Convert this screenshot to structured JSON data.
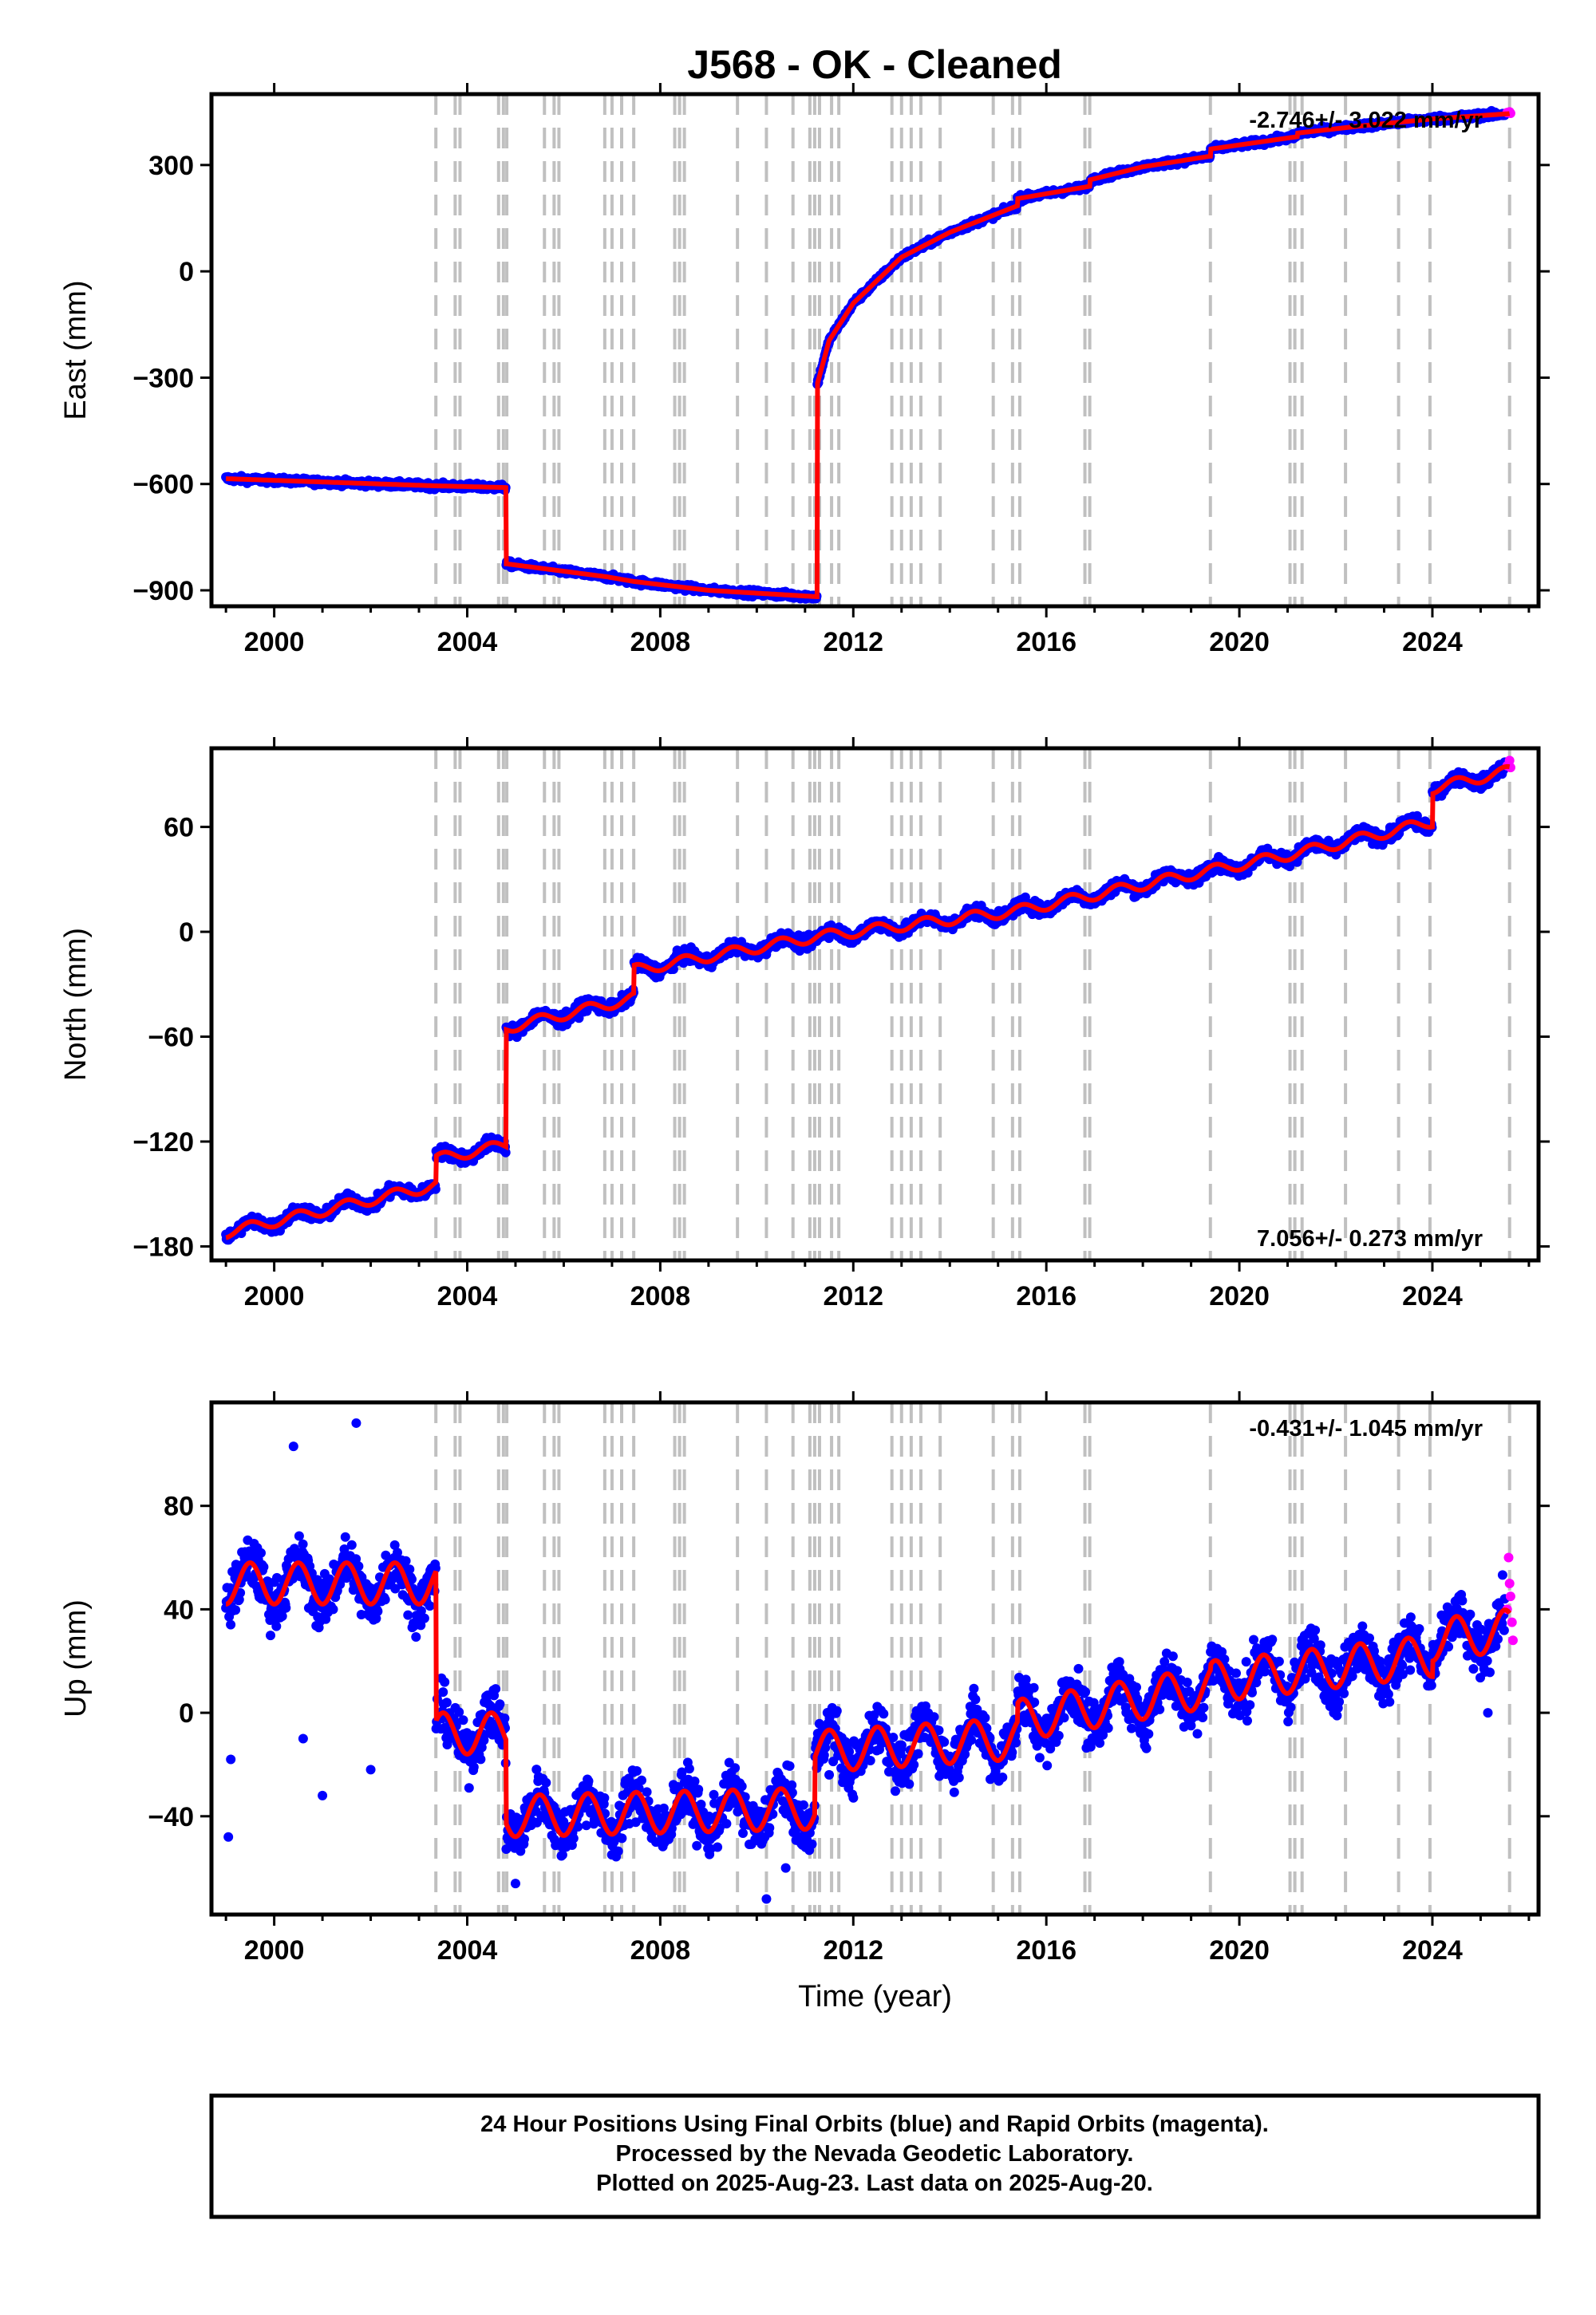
{
  "title": "J568  - OK - Cleaned",
  "chart_data": [
    {
      "type": "scatter",
      "id": "east",
      "ylabel": "East (mm)",
      "xlabel": "",
      "rate_text": "-2.746+/- 3.022 mm/yr",
      "rate_position": "top-right",
      "xlim": [
        1998.7,
        2026.2
      ],
      "ylim": [
        -945,
        500
      ],
      "xticks": [
        2000,
        2004,
        2008,
        2012,
        2016,
        2020,
        2024
      ],
      "yticks": [
        -900,
        -600,
        -300,
        0,
        300
      ],
      "ytick_labels": [
        "−900",
        "−600",
        "−300",
        "0",
        "300"
      ],
      "model": [
        [
          1999.0,
          -585
        ],
        [
          2003.3,
          -605
        ],
        [
          2004.8,
          -610
        ],
        [
          2004.8,
          -825
        ],
        [
          2006.9,
          -862
        ],
        [
          2007.45,
          -875
        ],
        [
          2009.0,
          -900
        ],
        [
          2011.25,
          -918
        ],
        [
          2011.25,
          -320
        ],
        [
          2011.5,
          -195
        ],
        [
          2012.0,
          -90
        ],
        [
          2013.0,
          40
        ],
        [
          2014.0,
          110
        ],
        [
          2015.4,
          185
        ],
        [
          2015.4,
          205
        ],
        [
          2016.9,
          240
        ],
        [
          2016.9,
          258
        ],
        [
          2018.0,
          295
        ],
        [
          2019.4,
          325
        ],
        [
          2019.4,
          345
        ],
        [
          2021.2,
          380
        ],
        [
          2021.2,
          390
        ],
        [
          2022.5,
          410
        ],
        [
          2024.0,
          430
        ],
        [
          2025.6,
          445
        ]
      ],
      "noise_mm": 6,
      "rapid_points": [
        [
          2025.55,
          448
        ],
        [
          2025.6,
          450
        ],
        [
          2025.62,
          446
        ]
      ]
    },
    {
      "type": "scatter",
      "id": "north",
      "ylabel": "North (mm)",
      "xlabel": "",
      "rate_text": "7.056+/- 0.273 mm/yr",
      "rate_position": "bottom-right",
      "xlim": [
        1998.7,
        2026.2
      ],
      "ylim": [
        -188,
        105
      ],
      "xticks": [
        2000,
        2004,
        2008,
        2012,
        2016,
        2020,
        2024
      ],
      "yticks": [
        -180,
        -120,
        -60,
        0,
        60
      ],
      "ytick_labels": [
        "−180",
        "−120",
        "−60",
        "0",
        "60"
      ],
      "model": [
        [
          1999.0,
          -172
        ],
        [
          2003.35,
          -145
        ],
        [
          2003.35,
          -130
        ],
        [
          2004.8,
          -122
        ],
        [
          2004.8,
          -55
        ],
        [
          2007.45,
          -38
        ],
        [
          2007.45,
          -22
        ],
        [
          2011.2,
          -3
        ],
        [
          2015.4,
          12
        ],
        [
          2019.4,
          35
        ],
        [
          2021.2,
          45
        ],
        [
          2024.0,
          63
        ],
        [
          2024.0,
          82
        ],
        [
          2025.6,
          92
        ]
      ],
      "seasonal_mm": 3,
      "noise_mm": 2.5,
      "rapid_points": [
        [
          2025.55,
          95
        ],
        [
          2025.6,
          98
        ],
        [
          2025.62,
          94
        ]
      ]
    },
    {
      "type": "scatter",
      "id": "up",
      "ylabel": "Up (mm)",
      "xlabel": "Time (year)",
      "rate_text": "-0.431+/- 1.045 mm/yr",
      "rate_position": "top-right",
      "xlim": [
        1998.7,
        2026.2
      ],
      "ylim": [
        -78,
        120
      ],
      "xticks": [
        2000,
        2004,
        2008,
        2012,
        2016,
        2020,
        2024
      ],
      "yticks": [
        -40,
        0,
        40,
        80
      ],
      "ytick_labels": [
        "−40",
        "0",
        "40",
        "80"
      ],
      "model": [
        [
          1999.0,
          50
        ],
        [
          2003.35,
          50
        ],
        [
          2003.35,
          -8
        ],
        [
          2004.8,
          -8
        ],
        [
          2004.8,
          -40
        ],
        [
          2011.2,
          -37
        ],
        [
          2011.2,
          -15
        ],
        [
          2015.4,
          -10
        ],
        [
          2015.4,
          -3
        ],
        [
          2019.4,
          10
        ],
        [
          2019.4,
          12
        ],
        [
          2024.0,
          22
        ],
        [
          2024.0,
          28
        ],
        [
          2025.6,
          32
        ]
      ],
      "seasonal_mm": 8,
      "noise_mm": 7,
      "outliers": [
        [
          1999.05,
          -48
        ],
        [
          1999.1,
          -18
        ],
        [
          2000.4,
          103
        ],
        [
          2000.6,
          -10
        ],
        [
          2001.0,
          -32
        ],
        [
          2001.7,
          112
        ],
        [
          2002.0,
          -22
        ],
        [
          2005.0,
          -66
        ],
        [
          2010.2,
          -72
        ],
        [
          2010.6,
          -60
        ],
        [
          2011.5,
          -24
        ],
        [
          2025.15,
          0
        ]
      ],
      "rapid_points": [
        [
          2025.55,
          40
        ],
        [
          2025.58,
          60
        ],
        [
          2025.6,
          50
        ],
        [
          2025.62,
          45
        ],
        [
          2025.65,
          35
        ],
        [
          2025.67,
          28
        ]
      ]
    }
  ],
  "event_lines": [
    2003.35,
    2003.75,
    2003.85,
    2004.65,
    2004.75,
    2004.82,
    2005.6,
    2005.8,
    2005.9,
    2006.85,
    2007.0,
    2007.2,
    2007.45,
    2008.3,
    2008.4,
    2008.5,
    2009.6,
    2010.2,
    2010.75,
    2011.1,
    2011.2,
    2011.3,
    2011.55,
    2011.7,
    2012.8,
    2013.0,
    2013.2,
    2013.4,
    2013.8,
    2014.9,
    2015.3,
    2015.45,
    2016.8,
    2016.9,
    2019.4,
    2021.05,
    2021.15,
    2021.3,
    2022.2,
    2023.3,
    2023.95,
    2025.6
  ],
  "colors": {
    "final_points": "#0000ff",
    "rapid_points": "#ff00ff",
    "model_line": "#ff0000",
    "event_lines": "#c0c0c0",
    "frame": "#000000"
  },
  "footer": {
    "line1": "24 Hour Positions Using Final Orbits (blue) and Rapid Orbits (magenta).",
    "line2": "Processed by the Nevada Geodetic Laboratory.",
    "line3": "Plotted on 2025-Aug-23. Last data on 2025-Aug-20."
  }
}
